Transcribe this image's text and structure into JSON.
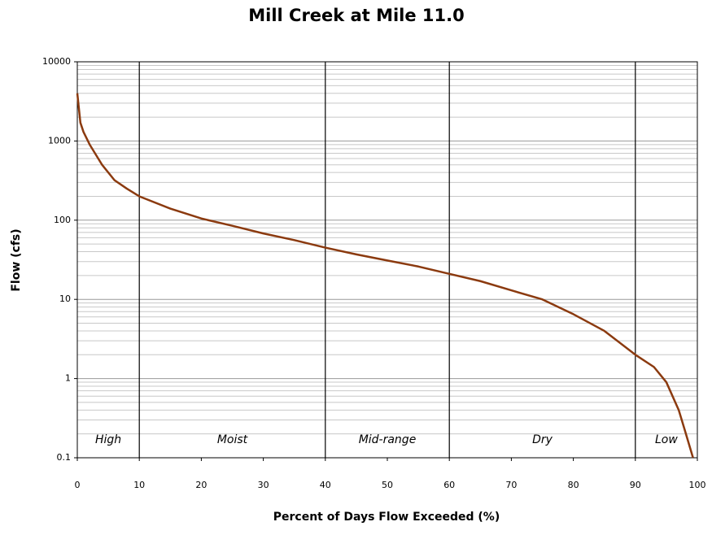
{
  "chart_data": {
    "type": "line",
    "title": "Mill Creek at Mile 11.0",
    "x_label": "Percent of Days Flow Exceeded (%)",
    "y_label": "Flow  (cfs)",
    "x": [
      0,
      0.5,
      1,
      2,
      4,
      6,
      8,
      10,
      15,
      20,
      25,
      30,
      35,
      40,
      45,
      50,
      55,
      60,
      65,
      70,
      75,
      80,
      85,
      90,
      93,
      95,
      97,
      98,
      99.3
    ],
    "values": [
      4000,
      1700,
      1300,
      900,
      500,
      320,
      250,
      200,
      140,
      105,
      85,
      68,
      56,
      45,
      37,
      31,
      26,
      21,
      17,
      13,
      10,
      6.5,
      4,
      2,
      1.4,
      0.9,
      0.4,
      0.22,
      0.1
    ],
    "color": "#8b3a0f",
    "xlim": [
      0,
      100
    ],
    "xticks": [
      0,
      10,
      20,
      30,
      40,
      50,
      60,
      70,
      80,
      90,
      100
    ],
    "ylim": [
      0.1,
      10000
    ],
    "yticks": [
      0.1,
      1,
      10,
      100,
      1000,
      10000
    ],
    "log_scale": true,
    "grid": true,
    "zones": [
      {
        "label": "High",
        "from": 0,
        "to": 10
      },
      {
        "label": "Moist",
        "from": 10,
        "to": 40
      },
      {
        "label": "Mid-range",
        "from": 40,
        "to": 60
      },
      {
        "label": "Dry",
        "from": 60,
        "to": 90
      },
      {
        "label": "Low",
        "from": 90,
        "to": 100
      }
    ]
  }
}
